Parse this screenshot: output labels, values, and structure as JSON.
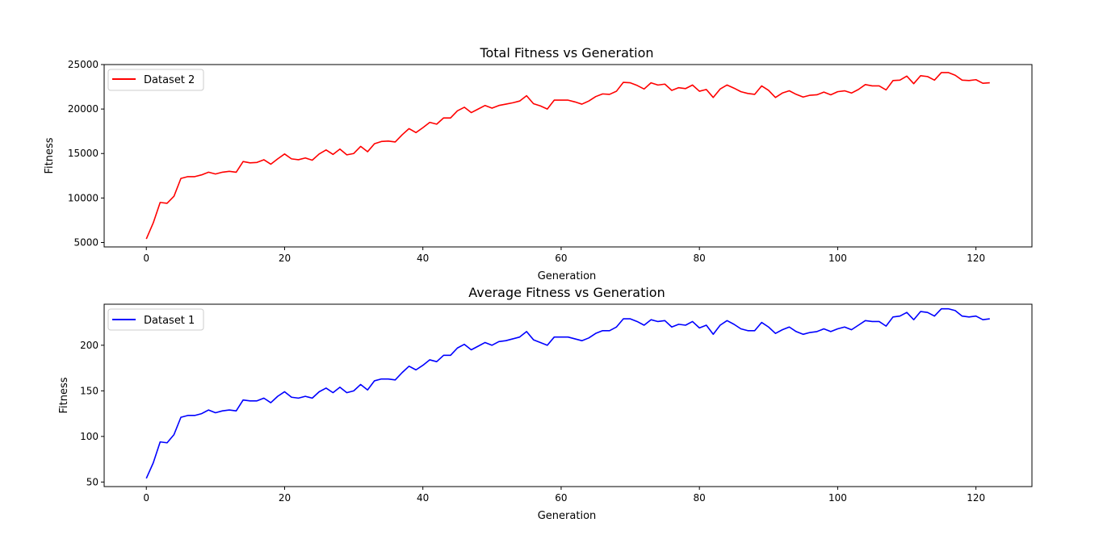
{
  "chart_data": [
    {
      "type": "line",
      "title": "Total Fitness vs Generation",
      "xlabel": "Generation",
      "ylabel": "Fitness",
      "xlim": [
        -6.1,
        128.1
      ],
      "ylim": [
        4500,
        25000
      ],
      "xticks": [
        0,
        20,
        40,
        60,
        80,
        100,
        120
      ],
      "yticks": [
        5000,
        10000,
        15000,
        20000,
        25000
      ],
      "legend_position": "top-left",
      "series": [
        {
          "name": "Dataset 2",
          "color": "#ff0000",
          "x_start": 0,
          "x_step": 1,
          "values": [
            5400,
            7200,
            9500,
            9400,
            10200,
            12200,
            12400,
            12400,
            12600,
            12900,
            12700,
            12900,
            13000,
            12900,
            14100,
            13950,
            14000,
            14300,
            13800,
            14400,
            14950,
            14400,
            14300,
            14500,
            14250,
            14950,
            15400,
            14900,
            15500,
            14850,
            15000,
            15800,
            15200,
            16100,
            16350,
            16400,
            16300,
            17100,
            17800,
            17350,
            17900,
            18500,
            18300,
            19000,
            19000,
            19800,
            20200,
            19600,
            20000,
            20400,
            20100,
            20400,
            20550,
            20700,
            20900,
            21500,
            20600,
            20350,
            20000,
            21000,
            21000,
            21000,
            20800,
            20550,
            20900,
            21400,
            21700,
            21650,
            22000,
            23000,
            22950,
            22650,
            22250,
            22950,
            22700,
            22800,
            22100,
            22400,
            22300,
            22700,
            22000,
            22200,
            21300,
            22250,
            22700,
            22350,
            21950,
            21750,
            21650,
            22600,
            22100,
            21300,
            21800,
            22050,
            21650,
            21350,
            21550,
            21600,
            21900,
            21600,
            21950,
            22050,
            21800,
            22200,
            22750,
            22600,
            22600,
            22150,
            23200,
            23250,
            23700,
            22850,
            23750,
            23650,
            23250,
            24100,
            24100,
            23800,
            23250,
            23200,
            23300,
            22900,
            22950
          ]
        }
      ]
    },
    {
      "type": "line",
      "title": "Average Fitness vs Generation",
      "xlabel": "Generation",
      "ylabel": "Fitness",
      "xlim": [
        -6.1,
        128.1
      ],
      "ylim": [
        45,
        245
      ],
      "xticks": [
        0,
        20,
        40,
        60,
        80,
        100,
        120
      ],
      "yticks": [
        50,
        100,
        150,
        200
      ],
      "legend_position": "top-left",
      "series": [
        {
          "name": "Dataset 1",
          "color": "#0000ff",
          "x_start": 0,
          "x_step": 1,
          "values": [
            54,
            71,
            94,
            93,
            102,
            121,
            123,
            123,
            125,
            129,
            126,
            128,
            129,
            128,
            140,
            139,
            139,
            142,
            137,
            144,
            149,
            143,
            142,
            144,
            142,
            149,
            153,
            148,
            154,
            148,
            150,
            157,
            151,
            161,
            163,
            163,
            162,
            170,
            177,
            173,
            178,
            184,
            182,
            189,
            189,
            197,
            201,
            195,
            199,
            203,
            200,
            204,
            205,
            207,
            209,
            215,
            206,
            203,
            200,
            209,
            209,
            209,
            207,
            205,
            208,
            213,
            216,
            216,
            220,
            229,
            229,
            226,
            222,
            228,
            226,
            227,
            220,
            223,
            222,
            226,
            219,
            222,
            212,
            222,
            227,
            223,
            218,
            216,
            216,
            225,
            220,
            213,
            217,
            220,
            215,
            212,
            214,
            215,
            218,
            215,
            218,
            220,
            217,
            222,
            227,
            226,
            226,
            221,
            231,
            232,
            236,
            228,
            237,
            236,
            232,
            240,
            240,
            238,
            232,
            231,
            232,
            228,
            229
          ]
        }
      ]
    }
  ]
}
